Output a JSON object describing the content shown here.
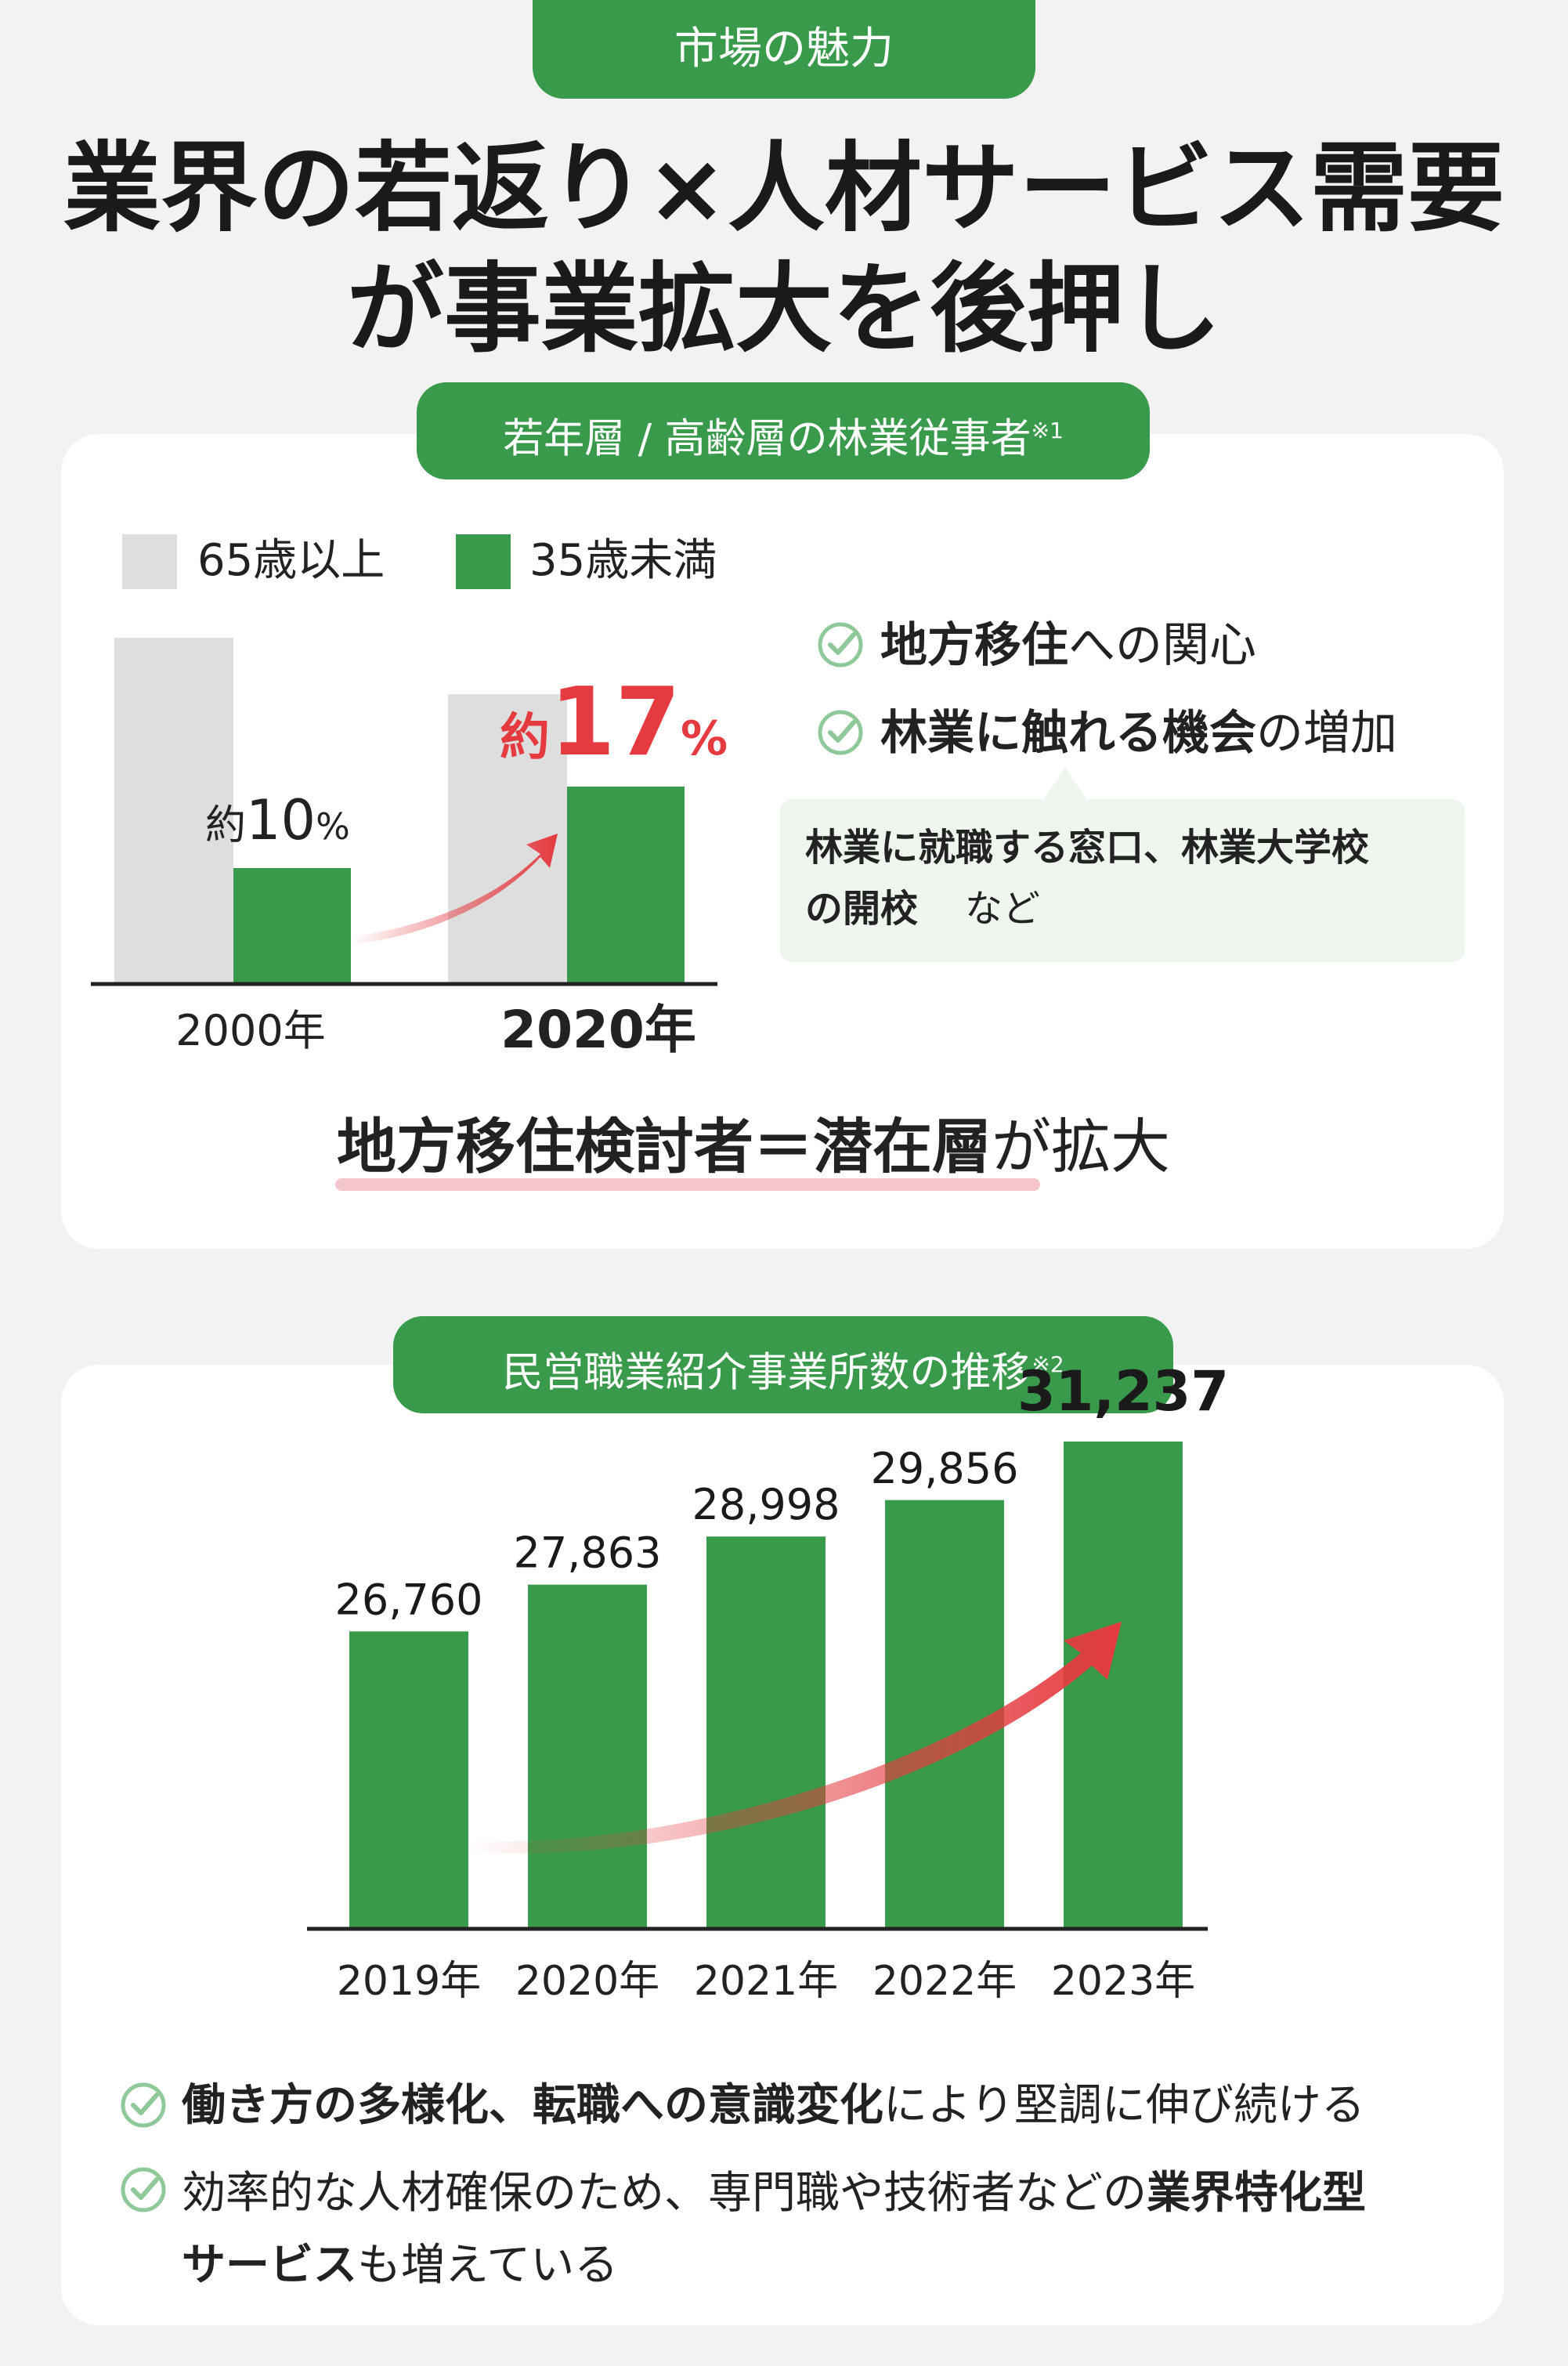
{
  "header": {
    "badge": "市場の魅力",
    "title_line1": "業界の若返り×人材サービス需要",
    "title_line2": "が事業拡大を後押し"
  },
  "section1": {
    "pill": "若年層 / 高齢層の林業従事者",
    "pill_note": "※1",
    "legend": [
      {
        "label": "65歳以上",
        "color": "#dedede"
      },
      {
        "label": "35歳未満",
        "color": "#3a9a4b"
      }
    ],
    "labels": {
      "y2000_prefix": "約",
      "y2000_value": "10",
      "y2000_unit": "%",
      "y2020_prefix": "約",
      "y2020_value": "17",
      "y2020_unit": "%"
    },
    "checks": [
      {
        "bold": "地方移住",
        "rest": "への関心"
      },
      {
        "bold": "林業に触れる機会",
        "rest": "の増加"
      }
    ],
    "note_line1": "林業に就職する窓口、林業大学校",
    "note_line2_bold": "の開校",
    "note_line2_rest": "など",
    "conclusion_bold": "地方移住検討者＝潜在層",
    "conclusion_rest": "が拡大"
  },
  "section2": {
    "pill": "民営職業紹介事業所数の推移",
    "pill_note": "※2",
    "checks": [
      {
        "bold": "働き方の多様化、転職への意識変化",
        "rest": "により堅調に伸び続ける"
      },
      {
        "rest1": "効率的な人材確保のため、専門職や技術者などの",
        "bold1": "業界特化型",
        "bold2": "サービス",
        "rest2": "も増えている"
      }
    ]
  },
  "colors": {
    "green": "#3a9a4b",
    "gray": "#dedede",
    "red": "#e53a3f",
    "accent_line": "#f4c6cb"
  },
  "chart_data": [
    {
      "type": "bar",
      "categories": [
        "2000年",
        "2020年"
      ],
      "series": [
        {
          "name": "65歳以上"
        },
        {
          "name": "35歳未満",
          "values": [
            10,
            17
          ],
          "unit": "%"
        }
      ],
      "annotation": "約17%"
    },
    {
      "type": "bar",
      "categories": [
        "2019年",
        "2020年",
        "2021年",
        "2022年",
        "2023年"
      ],
      "values": [
        26760,
        27863,
        28998,
        29856,
        31237
      ],
      "value_labels": [
        "26,760",
        "27,863",
        "28,998",
        "29,856",
        "31,237"
      ]
    }
  ]
}
